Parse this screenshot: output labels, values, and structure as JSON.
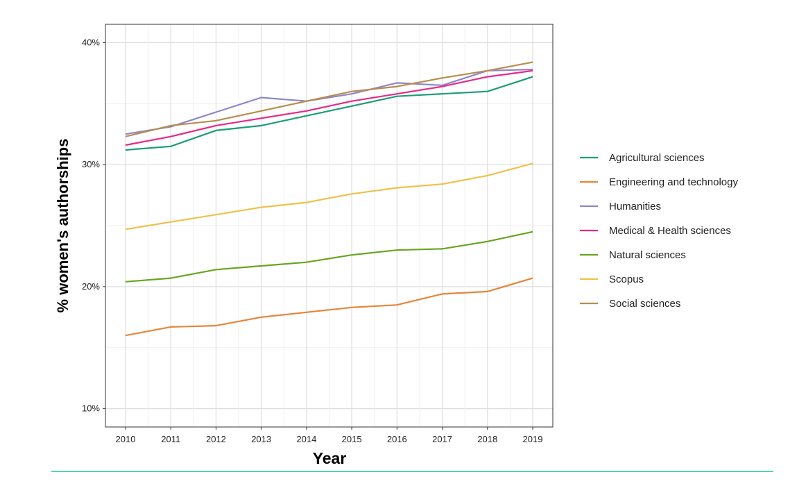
{
  "chart_data": {
    "type": "line",
    "title": "",
    "xlabel": "Year",
    "ylabel": "% women's authorships",
    "x": [
      2010,
      2011,
      2012,
      2013,
      2014,
      2015,
      2016,
      2017,
      2018,
      2019
    ],
    "x_tick_labels": [
      "2010",
      "2011",
      "2012",
      "2013",
      "2014",
      "2015",
      "2016",
      "2017",
      "2018",
      "2019"
    ],
    "y_ticks": [
      10,
      20,
      30,
      40
    ],
    "y_tick_labels": [
      "10%",
      "20%",
      "30%",
      "40%"
    ],
    "ylim": [
      8.5,
      41.5
    ],
    "grid": true,
    "legend_position": "right",
    "series": [
      {
        "name": "Agricultural sciences",
        "color": "#1b9e77",
        "values": [
          31.2,
          31.5,
          32.8,
          33.2,
          34.0,
          34.8,
          35.6,
          35.8,
          36.0,
          37.2
        ]
      },
      {
        "name": "Engineering and technology",
        "color": "#e7853a",
        "values": [
          16.0,
          16.7,
          16.8,
          17.5,
          17.9,
          18.3,
          18.5,
          19.4,
          19.6,
          20.7
        ]
      },
      {
        "name": "Humanities",
        "color": "#8d86c9",
        "values": [
          32.5,
          33.1,
          34.3,
          35.5,
          35.2,
          35.8,
          36.7,
          36.5,
          37.7,
          37.8
        ]
      },
      {
        "name": "Medical & Health sciences",
        "color": "#e7298a",
        "values": [
          31.6,
          32.3,
          33.2,
          33.8,
          34.4,
          35.2,
          35.8,
          36.4,
          37.2,
          37.7
        ]
      },
      {
        "name": "Natural sciences",
        "color": "#66a61e",
        "values": [
          20.4,
          20.7,
          21.4,
          21.7,
          22.0,
          22.6,
          23.0,
          23.1,
          23.7,
          24.5
        ]
      },
      {
        "name": "Scopus",
        "color": "#f0c04a",
        "values": [
          24.7,
          25.3,
          25.9,
          26.5,
          26.9,
          27.6,
          28.1,
          28.4,
          29.1,
          30.1
        ]
      },
      {
        "name": "Social sciences",
        "color": "#b88d4f",
        "values": [
          32.3,
          33.2,
          33.6,
          34.4,
          35.2,
          36.0,
          36.4,
          37.1,
          37.7,
          38.4
        ]
      }
    ]
  },
  "accent": {
    "divider_color": "#4fd5b7"
  }
}
